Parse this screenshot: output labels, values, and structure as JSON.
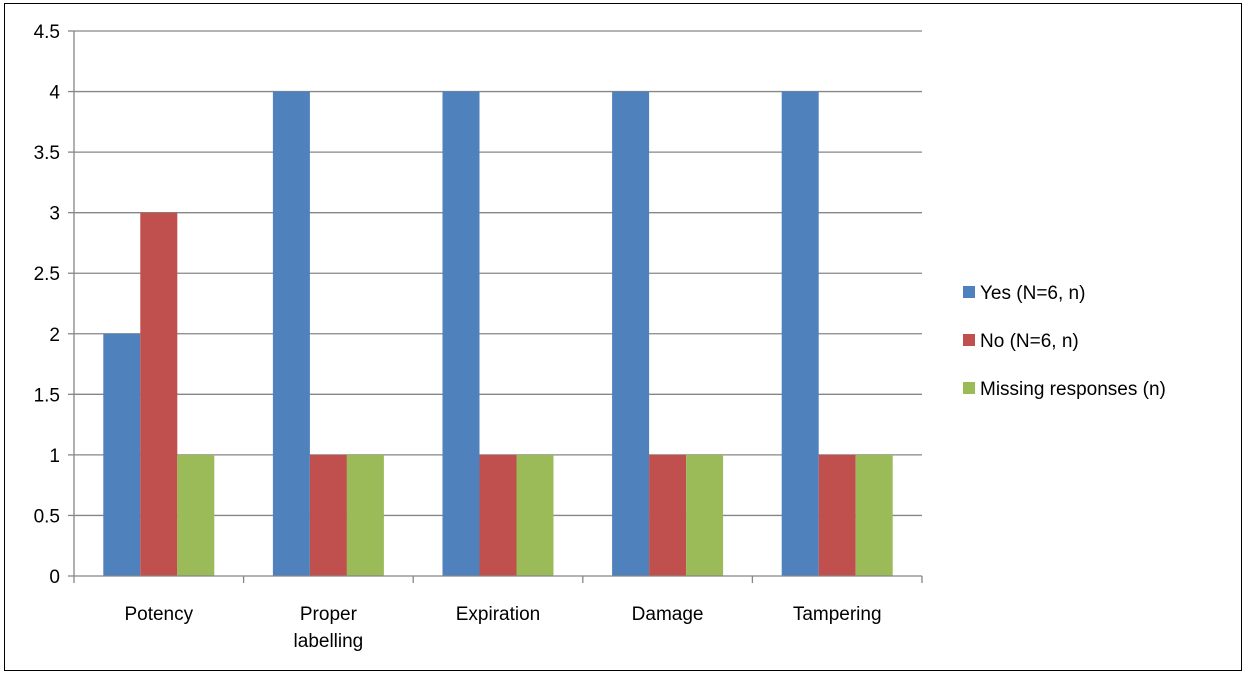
{
  "chart_data": {
    "type": "bar",
    "title": "",
    "xlabel": "",
    "ylabel": "",
    "categories": [
      [
        "Potency"
      ],
      [
        "Proper",
        "labelling"
      ],
      [
        "Expiration"
      ],
      [
        "Damage"
      ],
      [
        "Tampering"
      ]
    ],
    "series": [
      {
        "name": "Yes (N=6, n)",
        "color": "#4F81BD",
        "values": [
          2,
          4,
          4,
          4,
          4
        ]
      },
      {
        "name": "No (N=6, n)",
        "color": "#C0504D",
        "values": [
          3,
          1,
          1,
          1,
          1
        ]
      },
      {
        "name": "Missing responses (n)",
        "color": "#9BBB59",
        "values": [
          1,
          1,
          1,
          1,
          1
        ]
      }
    ],
    "ylim": [
      0,
      4.5
    ],
    "yticks": [
      "0",
      "0.5",
      "1",
      "1.5",
      "2",
      "2.5",
      "3",
      "3.5",
      "4",
      "4.5"
    ],
    "grid": true,
    "legend_position": "right"
  }
}
